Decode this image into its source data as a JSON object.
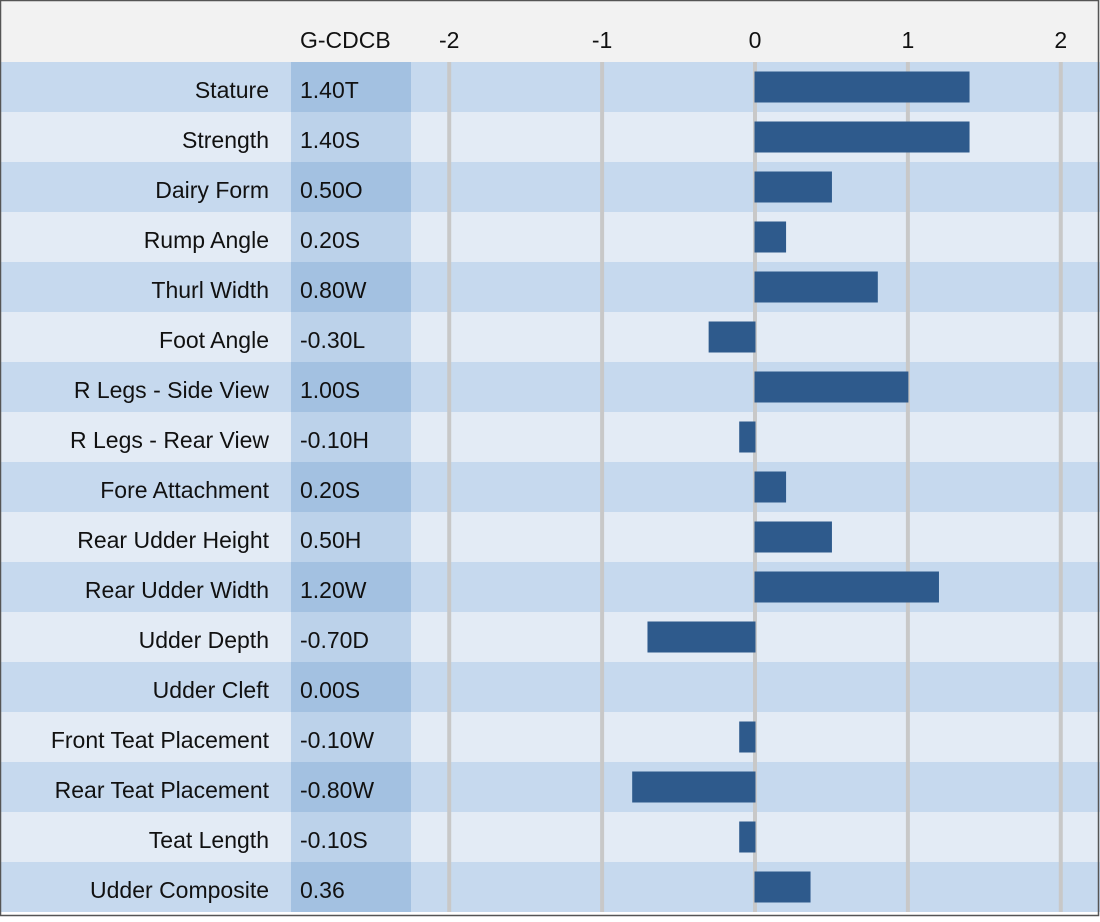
{
  "chart_data": {
    "type": "bar",
    "orientation": "horizontal",
    "column_header": "G-CDCB",
    "categories": [
      "Stature",
      "Strength",
      "Dairy Form",
      "Rump Angle",
      "Thurl Width",
      "Foot Angle",
      "R Legs - Side View",
      "R Legs - Rear View",
      "Fore Attachment",
      "Rear Udder Height",
      "Rear Udder Width",
      "Udder Depth",
      "Udder Cleft",
      "Front Teat Placement",
      "Rear Teat Placement",
      "Teat Length",
      "Udder Composite"
    ],
    "values": [
      1.4,
      1.4,
      0.5,
      0.2,
      0.8,
      -0.3,
      1.0,
      -0.1,
      0.2,
      0.5,
      1.2,
      -0.7,
      0.0,
      -0.1,
      -0.8,
      -0.1,
      0.36
    ],
    "value_labels": [
      "1.40T",
      "1.40S",
      "0.50O",
      "0.20S",
      "0.80W",
      "-0.30L",
      "1.00S",
      "-0.10H",
      "0.20S",
      "0.50H",
      "1.20W",
      "-0.70D",
      "0.00S",
      "-0.10W",
      "-0.80W",
      "-0.10S",
      "0.36"
    ],
    "color": "#2e5a8c",
    "xlim": [
      -2.25,
      2.25
    ],
    "xticks": [
      -2,
      -1,
      0,
      1,
      2
    ],
    "grid": true
  }
}
